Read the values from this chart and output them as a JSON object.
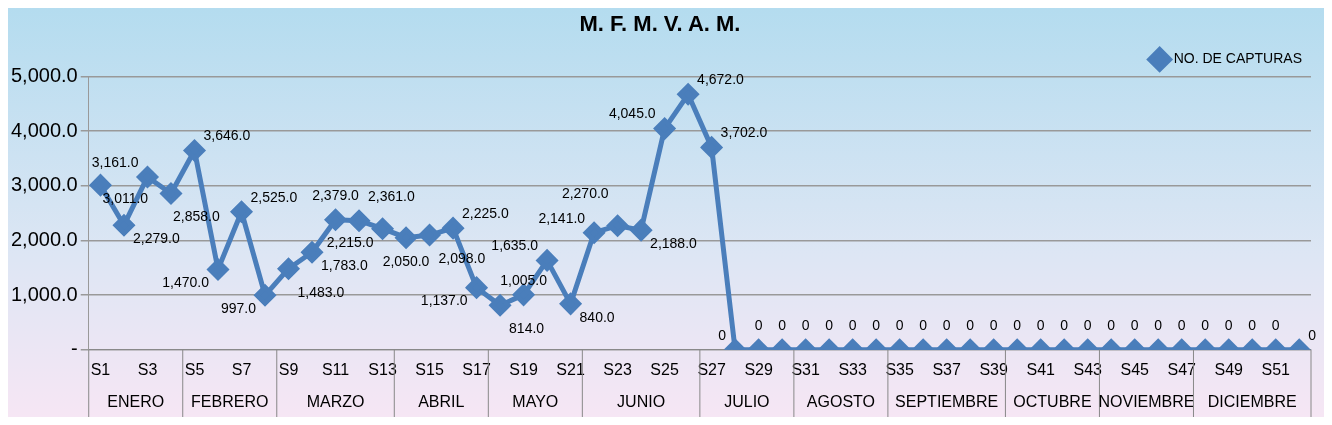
{
  "chart_data": {
    "type": "line",
    "title": "M. F. M. V. A. M.",
    "categories": [
      "S1",
      null,
      "S3",
      null,
      "S5",
      null,
      "S7",
      null,
      "S9",
      null,
      "S11",
      null,
      "S13",
      null,
      "S15",
      null,
      "S17",
      null,
      "S19",
      null,
      "S21",
      null,
      "S23",
      null,
      "S25",
      null,
      "S27",
      null,
      "S29",
      null,
      "S31",
      null,
      "S33",
      null,
      "S35",
      null,
      "S37",
      null,
      "S39",
      null,
      "S41",
      null,
      "S43",
      null,
      "S45",
      null,
      "S47",
      null,
      "S49",
      null,
      "S51",
      null
    ],
    "series": [
      {
        "name": "NO. DE CAPTURAS",
        "color": "#4a7ebb",
        "values": [
          3011,
          2279,
          3161,
          2858,
          3646,
          1470,
          2525,
          997,
          1483,
          1783,
          2379,
          2361,
          2215,
          2050,
          2098,
          2225,
          1137,
          814,
          1005,
          1635,
          840,
          2141,
          2270,
          2188,
          4045,
          4672,
          3702,
          0,
          0,
          0,
          0,
          0,
          0,
          0,
          0,
          0,
          0,
          0,
          0,
          0,
          0,
          0,
          0,
          0,
          0,
          0,
          0,
          0,
          0,
          0,
          0,
          0
        ],
        "value_labels": [
          "3,011.0",
          "2,279.0",
          "3,161.0",
          "2,858.0",
          "3,646.0",
          "1,470.0",
          "2,525.0",
          "997.0",
          "1,483.0",
          "1,783.0",
          "2,379.0",
          "2,361.0",
          "2,215.0",
          "2,050.0",
          "2,098.0",
          "2,225.0",
          "1,137.0",
          "814.0",
          "1,005.0",
          "1,635.0",
          "840.0",
          "2,141.0",
          "2,270.0",
          "2,188.0",
          "4,045.0",
          "4,672.0",
          "3,702.0",
          "0",
          "0",
          "0",
          "0",
          "0",
          "0",
          "0",
          "0",
          "0",
          "0",
          "0",
          "0",
          "0",
          "0",
          "0",
          "0",
          "0",
          "0",
          "0",
          "0",
          "0",
          "0",
          "0",
          "0",
          "0"
        ]
      }
    ],
    "ylim": [
      0,
      5000
    ],
    "yticks": [
      {
        "value": 0,
        "label": "-"
      },
      {
        "value": 1000,
        "label": "1,000.0"
      },
      {
        "value": 2000,
        "label": "2,000.0"
      },
      {
        "value": 3000,
        "label": "3,000.0"
      },
      {
        "value": 4000,
        "label": "4,000.0"
      },
      {
        "value": 5000,
        "label": "5,000.0"
      }
    ],
    "annotations": [
      "ENERO",
      "FEBRERO",
      "MARZO",
      "ABRIL",
      "MAYO",
      "JUNIO",
      "JULIO",
      "AGOSTO",
      "SEPTIEMBRE",
      "OCTUBRE",
      "NOVIEMBRE",
      "DICIEMBRE"
    ],
    "grid": "y",
    "legend": "top right",
    "marker": "diamond",
    "line_style": "solid"
  }
}
